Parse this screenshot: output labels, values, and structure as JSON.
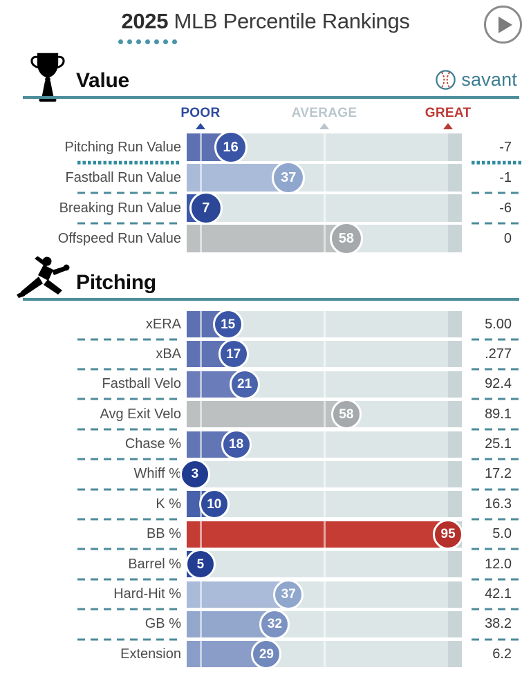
{
  "title": {
    "year": "2025",
    "rest": " MLB Percentile Rankings",
    "dots_count": 7,
    "dots_color": "#4a94a8"
  },
  "branding": {
    "logo_text": "savant",
    "logo_color": "#3d7e93"
  },
  "scale_header": {
    "poor": {
      "label": "POOR",
      "color": "#2e4a9e",
      "position": 5
    },
    "average": {
      "label": "AVERAGE",
      "color": "#b9c7cd",
      "position": 50
    },
    "great": {
      "label": "GREAT",
      "color": "#bc3a35",
      "position": 95
    }
  },
  "colors": {
    "rule_teal": "#4d8e9c",
    "track": "#dde6e7",
    "track_great_cap": "#c9d4d6",
    "dashed_separator": "#4d8b9a",
    "dotted_separator": "#2f8b9d"
  },
  "chart_data": [
    {
      "type": "bar",
      "title": "Value",
      "icon": "trophy-icon",
      "xlim": [
        0,
        100
      ],
      "markers": {
        "poor": 5,
        "average": 50,
        "great": 95
      },
      "categories": [
        "Pitching Run Value",
        "Fastball Run Value",
        "Breaking Run Value",
        "Offspeed Run Value"
      ],
      "percentiles": [
        16,
        37,
        7,
        58
      ],
      "display_values": [
        "-7",
        "-1",
        "-6",
        "0"
      ],
      "bar_colors": [
        "#5d70b2",
        "#a9bbd8",
        "#3c59ac",
        "#bcc0c1"
      ],
      "circle_colors": [
        "#3a55a5",
        "#8fa6cd",
        "#2c4798",
        "#a5a9ab"
      ],
      "separator_styles": [
        "dotted",
        "dashed",
        "dashed"
      ]
    },
    {
      "type": "bar",
      "title": "Pitching",
      "icon": "pitcher-icon",
      "xlim": [
        0,
        100
      ],
      "markers": {
        "poor": 5,
        "average": 50,
        "great": 95
      },
      "categories": [
        "xERA",
        "xBA",
        "Fastball Velo",
        "Avg Exit Velo",
        "Chase %",
        "Whiff %",
        "K %",
        "BB %",
        "Barrel %",
        "Hard-Hit %",
        "GB %",
        "Extension"
      ],
      "percentiles": [
        15,
        17,
        21,
        58,
        18,
        3,
        10,
        95,
        5,
        37,
        32,
        29
      ],
      "display_values": [
        "5.00",
        ".277",
        "92.4",
        "89.1",
        "25.1",
        "17.2",
        "16.3",
        "5.0",
        "12.0",
        "42.1",
        "38.2",
        "6.2"
      ],
      "bar_colors": [
        "#5c70b2",
        "#5f73b4",
        "#6a7dba",
        "#bcc0c1",
        "#6276b5",
        "#2c489b",
        "#4761ab",
        "#c43c34",
        "#2f4c9e",
        "#a9bbd8",
        "#93a7cd",
        "#8a9cc8"
      ],
      "circle_colors": [
        "#3a55a5",
        "#3d58a7",
        "#4a63ad",
        "#a5a9ab",
        "#4059a8",
        "#213b90",
        "#2f4b9e",
        "#b52f2b",
        "#223d92",
        "#8fa6cd",
        "#7b92c2",
        "#7088bb"
      ],
      "separator_styles": [
        "dashed",
        "dashed",
        "dashed",
        "dashed",
        "dashed",
        "dashed",
        "dashed",
        "dashed",
        "dashed",
        "dashed",
        "dashed"
      ]
    }
  ]
}
